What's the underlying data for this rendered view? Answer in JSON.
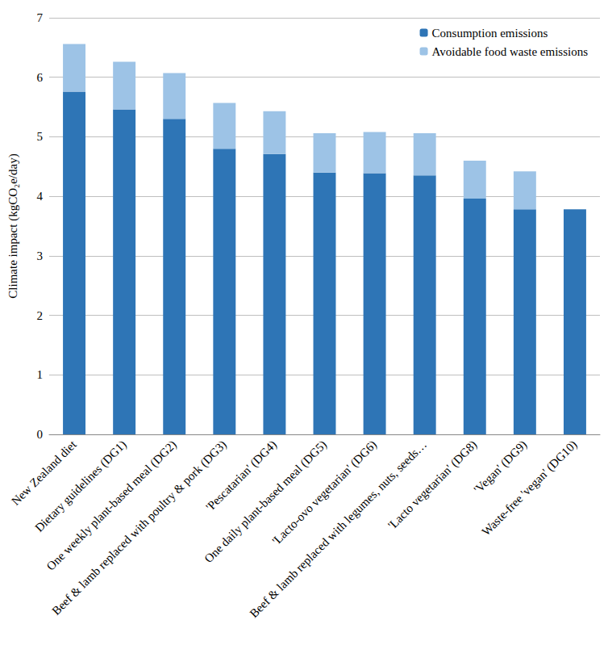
{
  "chart_data": {
    "type": "bar",
    "y_label": "Climate impact (kgCO₂e/day)",
    "categories": [
      "New Zealand diet",
      "Dietary guidelines (DG1)",
      "One weekly plant-based meal (DG2)",
      "Beef & lamb replaced with poultry & pork (DG3)",
      "'Pescatarian' (DG4)",
      "One daily plant-based meal (DG5)",
      "'Lacto-ovo vegetarian' (DG6)",
      "Beef & lamb replaced with legumes, nuts, seeds…",
      "'Lacto vegetarian' (DG8)",
      "'Vegan' (DG9)",
      "Waste-free 'vegan' (DG10)"
    ],
    "series": [
      {
        "name": "Consumption emissions",
        "color": "#2e75b6",
        "values": [
          5.76,
          5.46,
          5.3,
          4.8,
          4.71,
          4.4,
          4.39,
          4.35,
          3.96,
          3.78,
          3.78
        ]
      },
      {
        "name": "Avoidable food waste emissions",
        "color": "#9dc3e6",
        "values": [
          0.8,
          0.8,
          0.77,
          0.77,
          0.72,
          0.66,
          0.69,
          0.71,
          0.64,
          0.64,
          0
        ]
      }
    ],
    "ylim": [
      0,
      7
    ],
    "yticks": [
      0,
      1,
      2,
      3,
      4,
      5,
      6,
      7
    ],
    "stacked": true,
    "grid": true,
    "legend": "top-right"
  }
}
